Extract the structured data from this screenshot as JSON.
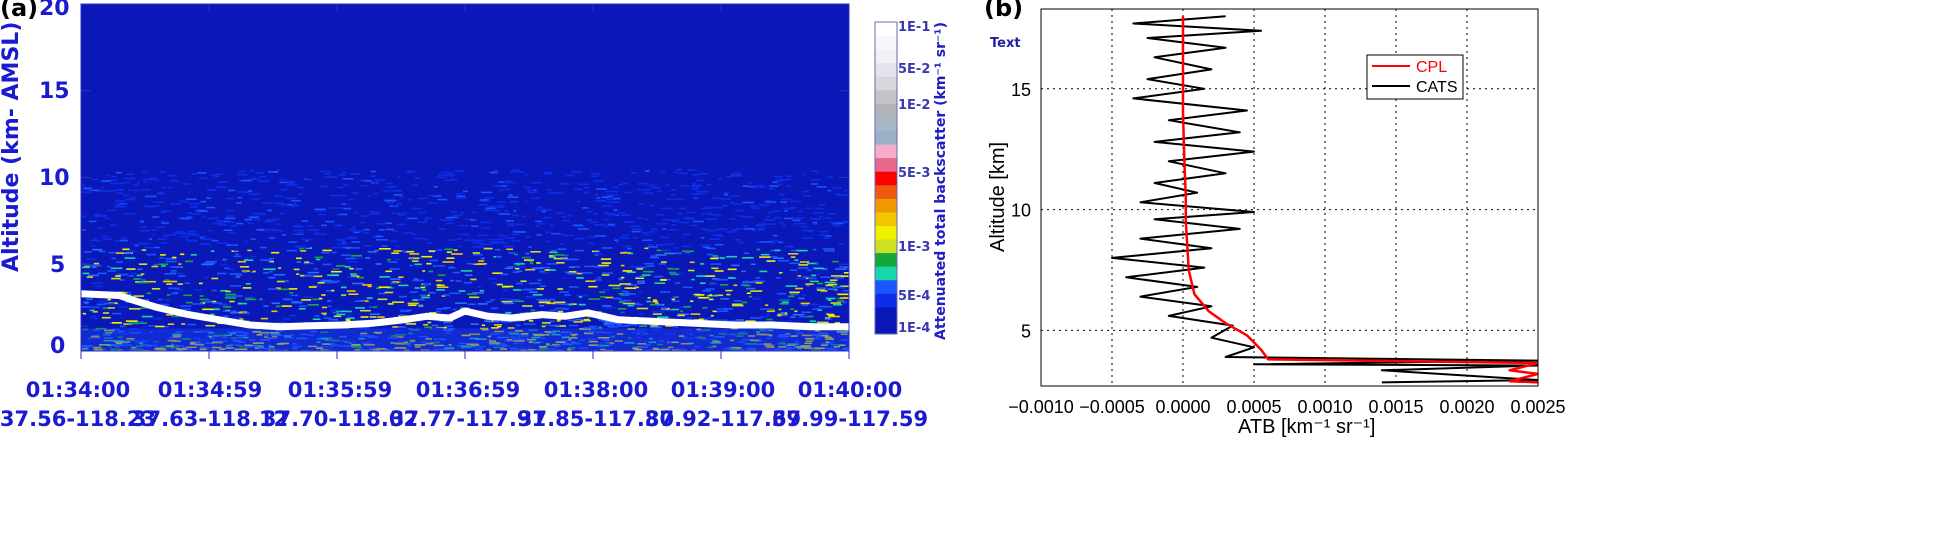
{
  "panel_a": {
    "label": "(a)",
    "ylabel": "Altitude (km- AMSL)",
    "colorbar_title": "Attenuated total backscatter (km⁻¹ sr⁻¹)",
    "colorbar_ticks": [
      "1E-1",
      "5E-2",
      "1E-2",
      "5E-3",
      "1E-3",
      "5E-4",
      "1E-4"
    ],
    "colorbar_colors": [
      "#0a18b8",
      "#0a18b8",
      "#0d2ee8",
      "#1b55ff",
      "#17d6a8",
      "#14a83c",
      "#cfe022",
      "#f0f000",
      "#f3c400",
      "#f19a00",
      "#ee5a10",
      "#ff0000",
      "#e8678d",
      "#f7adc9",
      "#9cb0c8",
      "#a8b6c6",
      "#b0b4b8",
      "#c4c4c8",
      "#d6d6dc",
      "#e4e4ec",
      "#f0f0f6",
      "#f6f6fc",
      "#ffffff"
    ]
  },
  "panel_b": {
    "label": "(b)",
    "text_annotation": "Text",
    "ylabel": "Altitude [km]",
    "xlabel": "ATB [km⁻¹ sr⁻¹]",
    "legend": [
      "CPL",
      "CATS"
    ]
  },
  "colors": {
    "cpl": "#ff0000",
    "cats": "#000000",
    "axis_blue": "#1a1ad0",
    "background_blue": "#0a18b8"
  },
  "chart_data": [
    {
      "type": "heatmap",
      "title": "",
      "ylabel": "Altitude (km- AMSL)",
      "ylim": [
        0,
        20
      ],
      "yticks": [
        "0",
        "5",
        "10",
        "15",
        "20"
      ],
      "xticks": [
        {
          "time": "01:34:00",
          "lat_lon": "37.56-118.23"
        },
        {
          "time": "01:34:59",
          "lat_lon": "37.63-118.12"
        },
        {
          "time": "01:35:59",
          "lat_lon": "37.70-118.02"
        },
        {
          "time": "01:36:59",
          "lat_lon": "37.77-117.91"
        },
        {
          "time": "01:38:00",
          "lat_lon": "37.85-117.80"
        },
        {
          "time": "01:39:00",
          "lat_lon": "37.92-117.69"
        },
        {
          "time": "01:40:00",
          "lat_lon": "37.99-117.59"
        }
      ],
      "colorbar": {
        "label": "Attenuated total backscatter (km⁻¹ sr⁻¹)",
        "range": [
          "1E-4",
          "1E-1"
        ]
      },
      "surface_km": {
        "x_frac": [
          0.0,
          0.05,
          0.07,
          0.1,
          0.14,
          0.18,
          0.22,
          0.26,
          0.3,
          0.34,
          0.38,
          0.42,
          0.45,
          0.48,
          0.5,
          0.53,
          0.56,
          0.6,
          0.63,
          0.66,
          0.7,
          0.75,
          0.8,
          0.85,
          0.9,
          0.95,
          1.0
        ],
        "altitude": [
          3.3,
          3.2,
          2.9,
          2.5,
          2.1,
          1.8,
          1.5,
          1.4,
          1.45,
          1.5,
          1.6,
          1.8,
          2.0,
          1.9,
          2.3,
          2.0,
          1.9,
          2.1,
          2.0,
          2.2,
          1.8,
          1.7,
          1.6,
          1.5,
          1.5,
          1.4,
          1.4
        ]
      }
    },
    {
      "type": "line",
      "title": "",
      "xlabel": "ATB [km⁻¹ sr⁻¹]",
      "ylabel": "Altitude [km]",
      "xlim": [
        -0.001,
        0.0025
      ],
      "ylim": [
        2.7,
        18.3
      ],
      "xticks": [
        "−0.0010",
        "−0.0005",
        "0.0000",
        "0.0005",
        "0.0010",
        "0.0015",
        "0.0020",
        "0.0025"
      ],
      "yticks": [
        "5",
        "10",
        "15"
      ],
      "grid": true,
      "legend_position": "top-right",
      "series": [
        {
          "name": "CPL",
          "x": [
            0.0025,
            0.0023,
            0.0025,
            0.0023,
            0.0025,
            0.0006,
            0.00055,
            0.00045,
            0.0003,
            0.00018,
            8e-05,
            4e-05,
            3e-05,
            2e-05,
            2e-05,
            1e-05,
            0.0,
            0.0,
            0.0
          ],
          "y": [
            2.85,
            2.9,
            3.2,
            3.35,
            3.65,
            3.8,
            4.2,
            4.8,
            5.3,
            5.8,
            6.5,
            7.5,
            8.5,
            9.5,
            10.5,
            12.0,
            14.0,
            16.0,
            18.0
          ]
        },
        {
          "name": "CATS",
          "x": [
            0.0014,
            0.0025,
            0.0014,
            0.0025,
            0.0005,
            0.0025,
            0.0003,
            0.0005,
            0.0002,
            0.00035,
            -0.0001,
            0.0002,
            -0.0003,
            0.0001,
            -0.0004,
            0.00015,
            -0.0005,
            0.0002,
            -0.0003,
            0.0004,
            -0.0002,
            0.0005,
            -0.0003,
            0.0001,
            -0.0002,
            0.0003,
            -0.0001,
            0.0005,
            -0.0002,
            0.0004,
            -0.0001,
            0.00045,
            -0.00035,
            0.00015,
            -0.00025,
            0.0002,
            -0.0002,
            0.0003,
            -0.00025,
            0.00055,
            -0.00035,
            0.0003
          ],
          "y": [
            2.85,
            2.95,
            3.35,
            3.55,
            3.6,
            3.75,
            3.9,
            4.3,
            4.7,
            5.2,
            5.6,
            6.0,
            6.4,
            6.8,
            7.2,
            7.6,
            8.0,
            8.4,
            8.8,
            9.2,
            9.6,
            9.9,
            10.3,
            10.7,
            11.1,
            11.5,
            12.0,
            12.4,
            12.8,
            13.2,
            13.7,
            14.1,
            14.6,
            15.0,
            15.4,
            15.8,
            16.3,
            16.7,
            17.1,
            17.4,
            17.7,
            18.0
          ]
        }
      ]
    }
  ]
}
